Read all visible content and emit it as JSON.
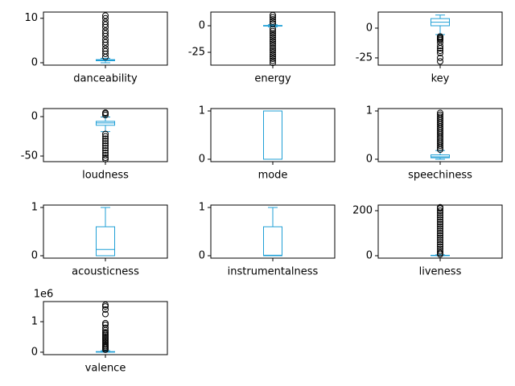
{
  "chart_data": [
    {
      "type": "box",
      "category": "danceability",
      "color": "#1f9fd6",
      "ylim": [
        -0.54,
        11.4
      ],
      "yticks": [
        0,
        10
      ],
      "whislo": 0,
      "q1": 0.45,
      "med": 0.55,
      "q3": 0.7,
      "whishi": 1.0,
      "fliers": [
        1.3,
        2,
        2.6,
        3.2,
        4,
        4.6,
        5.2,
        6,
        6.6,
        7.2,
        8,
        8.6,
        9.2,
        10,
        10.6
      ]
    },
    {
      "type": "box",
      "category": "energy",
      "color": "#1f9fd6",
      "ylim": [
        -37.1,
        12.9
      ],
      "yticks": [
        -25,
        0
      ],
      "whislo": -1,
      "q1": -0.3,
      "med": 0,
      "q3": 0.3,
      "whishi": 1,
      "fliers": [
        2,
        4,
        6,
        8,
        10,
        -3,
        -5,
        -7,
        -9,
        -11,
        -13,
        -15,
        -17,
        -19,
        -21,
        -23,
        -25,
        -27,
        -29,
        -31,
        -33,
        -35
      ]
    },
    {
      "type": "box",
      "category": "key",
      "color": "#1f9fd6",
      "ylim": [
        -31.1,
        13.5
      ],
      "yticks": [
        -25,
        0
      ],
      "whislo": -5.4,
      "q1": 2,
      "med": 5,
      "q3": 8,
      "whishi": 11,
      "fliers": [
        -7,
        -8,
        -9,
        -10,
        -12,
        -15,
        -17,
        -19,
        -21,
        -25,
        -28
      ]
    },
    {
      "type": "box",
      "category": "loudness",
      "color": "#1f9fd6",
      "ylim": [
        -57.1,
        10.2
      ],
      "yticks": [
        -50,
        0
      ],
      "whislo": -19,
      "q1": -11,
      "med": -8,
      "q3": -6,
      "whishi": -0.5,
      "fliers": [
        2,
        4,
        5,
        -22,
        -25,
        -28,
        -31,
        -34,
        -37,
        -40,
        -43,
        -46,
        -49,
        -52,
        -54
      ]
    },
    {
      "type": "box",
      "category": "mode",
      "color": "#1f9fd6",
      "ylim": [
        -0.05,
        1.05
      ],
      "yticks": [
        0,
        1
      ],
      "whislo": 0,
      "q1": 0,
      "med": 1,
      "q3": 1,
      "whishi": 1,
      "fliers": []
    },
    {
      "type": "box",
      "category": "speechiness",
      "color": "#1f9fd6",
      "ylim": [
        -0.05,
        1.05
      ],
      "yticks": [
        0,
        1
      ],
      "whislo": 0,
      "q1": 0.03,
      "med": 0.05,
      "q3": 0.09,
      "whishi": 0.18,
      "fliers": [
        0.2,
        0.24,
        0.28,
        0.32,
        0.36,
        0.4,
        0.44,
        0.48,
        0.52,
        0.56,
        0.6,
        0.64,
        0.68,
        0.72,
        0.76,
        0.8,
        0.84,
        0.88,
        0.92,
        0.96
      ]
    },
    {
      "type": "box",
      "category": "acousticness",
      "color": "#1f9fd6",
      "ylim": [
        -0.05,
        1.05
      ],
      "yticks": [
        0,
        1
      ],
      "whislo": 0,
      "q1": 0,
      "med": 0.13,
      "q3": 0.6,
      "whishi": 1,
      "fliers": []
    },
    {
      "type": "box",
      "category": "instrumentalness",
      "color": "#1f9fd6",
      "ylim": [
        -0.05,
        1.05
      ],
      "yticks": [
        0,
        1
      ],
      "whislo": 0,
      "q1": 0,
      "med": 0.01,
      "q3": 0.6,
      "whishi": 1,
      "fliers": []
    },
    {
      "type": "box",
      "category": "liveness",
      "color": "#1f9fd6",
      "ylim": [
        -10.7,
        225
      ],
      "yticks": [
        0,
        200
      ],
      "whislo": 0,
      "q1": 0.5,
      "med": 1,
      "q3": 2,
      "whishi": 4,
      "fliers": [
        6,
        12,
        20,
        30,
        40,
        50,
        60,
        70,
        80,
        90,
        100,
        110,
        120,
        130,
        140,
        150,
        160,
        170,
        180,
        190,
        200,
        210,
        215
      ]
    },
    {
      "type": "box",
      "category": "valence",
      "color": "#1f9fd6",
      "ylim": [
        -0.08,
        1.66
      ],
      "yticks": [
        0,
        1
      ],
      "offset_text": "1e6",
      "whislo": 0,
      "q1": 0.003,
      "med": 0.006,
      "q3": 0.02,
      "whishi": 0.05,
      "fliers": [
        0.08,
        0.12,
        0.16,
        0.2,
        0.25,
        0.3,
        0.35,
        0.4,
        0.45,
        0.5,
        0.55,
        0.6,
        0.65,
        0.72,
        0.8,
        0.9,
        0.95,
        1.25,
        1.4,
        1.5,
        1.55
      ]
    }
  ]
}
